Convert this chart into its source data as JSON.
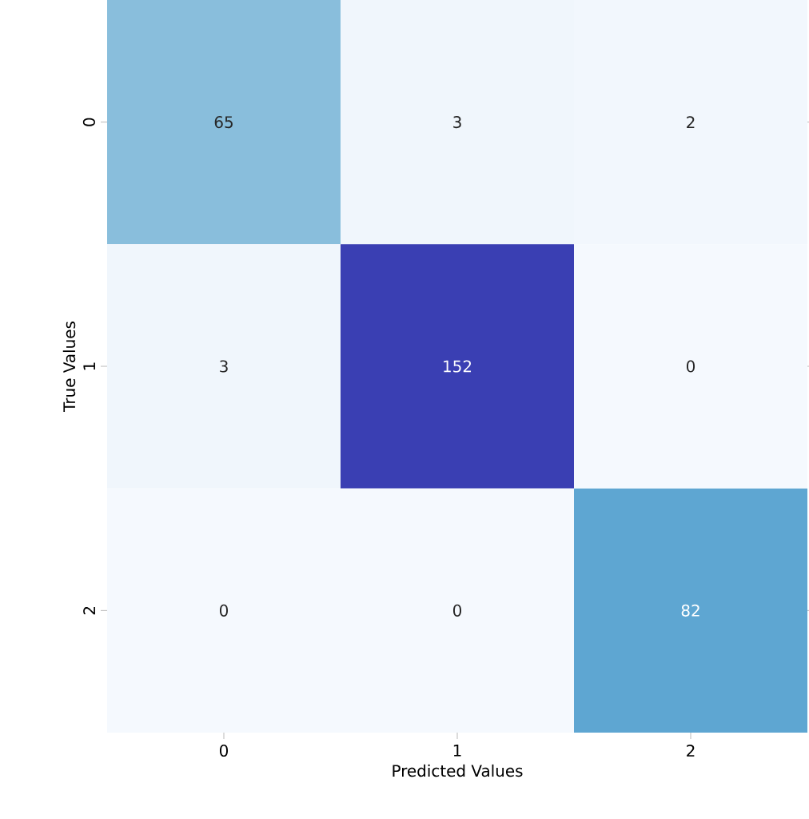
{
  "chart_data": {
    "type": "heatmap",
    "xlabel": "Predicted Values",
    "ylabel": "True Values",
    "categories": [
      "0",
      "1",
      "2"
    ],
    "y_categories": [
      "0",
      "1",
      "2"
    ],
    "cells": [
      [
        65,
        3,
        2
      ],
      [
        3,
        152,
        0
      ],
      [
        0,
        0,
        82
      ]
    ],
    "data_labels": true
  }
}
